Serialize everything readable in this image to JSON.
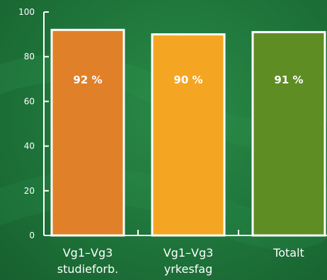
{
  "chart_data": {
    "type": "bar",
    "ylim": [
      0,
      100
    ],
    "yticks": [
      0,
      20,
      40,
      60,
      80,
      100
    ],
    "categories": [
      [
        "Vg1–Vg3",
        "studieforb."
      ],
      [
        "Vg1–Vg3",
        "yrkesfag"
      ],
      [
        "Totalt"
      ]
    ],
    "values": [
      92,
      90,
      91
    ],
    "data_labels": [
      "92 %",
      "90 %",
      "91 %"
    ],
    "colors": [
      "#e0812a",
      "#f4a622",
      "#5e8d23"
    ],
    "bar_outline": "#ffffff",
    "axis_color": "#ffffff",
    "grid": false
  }
}
